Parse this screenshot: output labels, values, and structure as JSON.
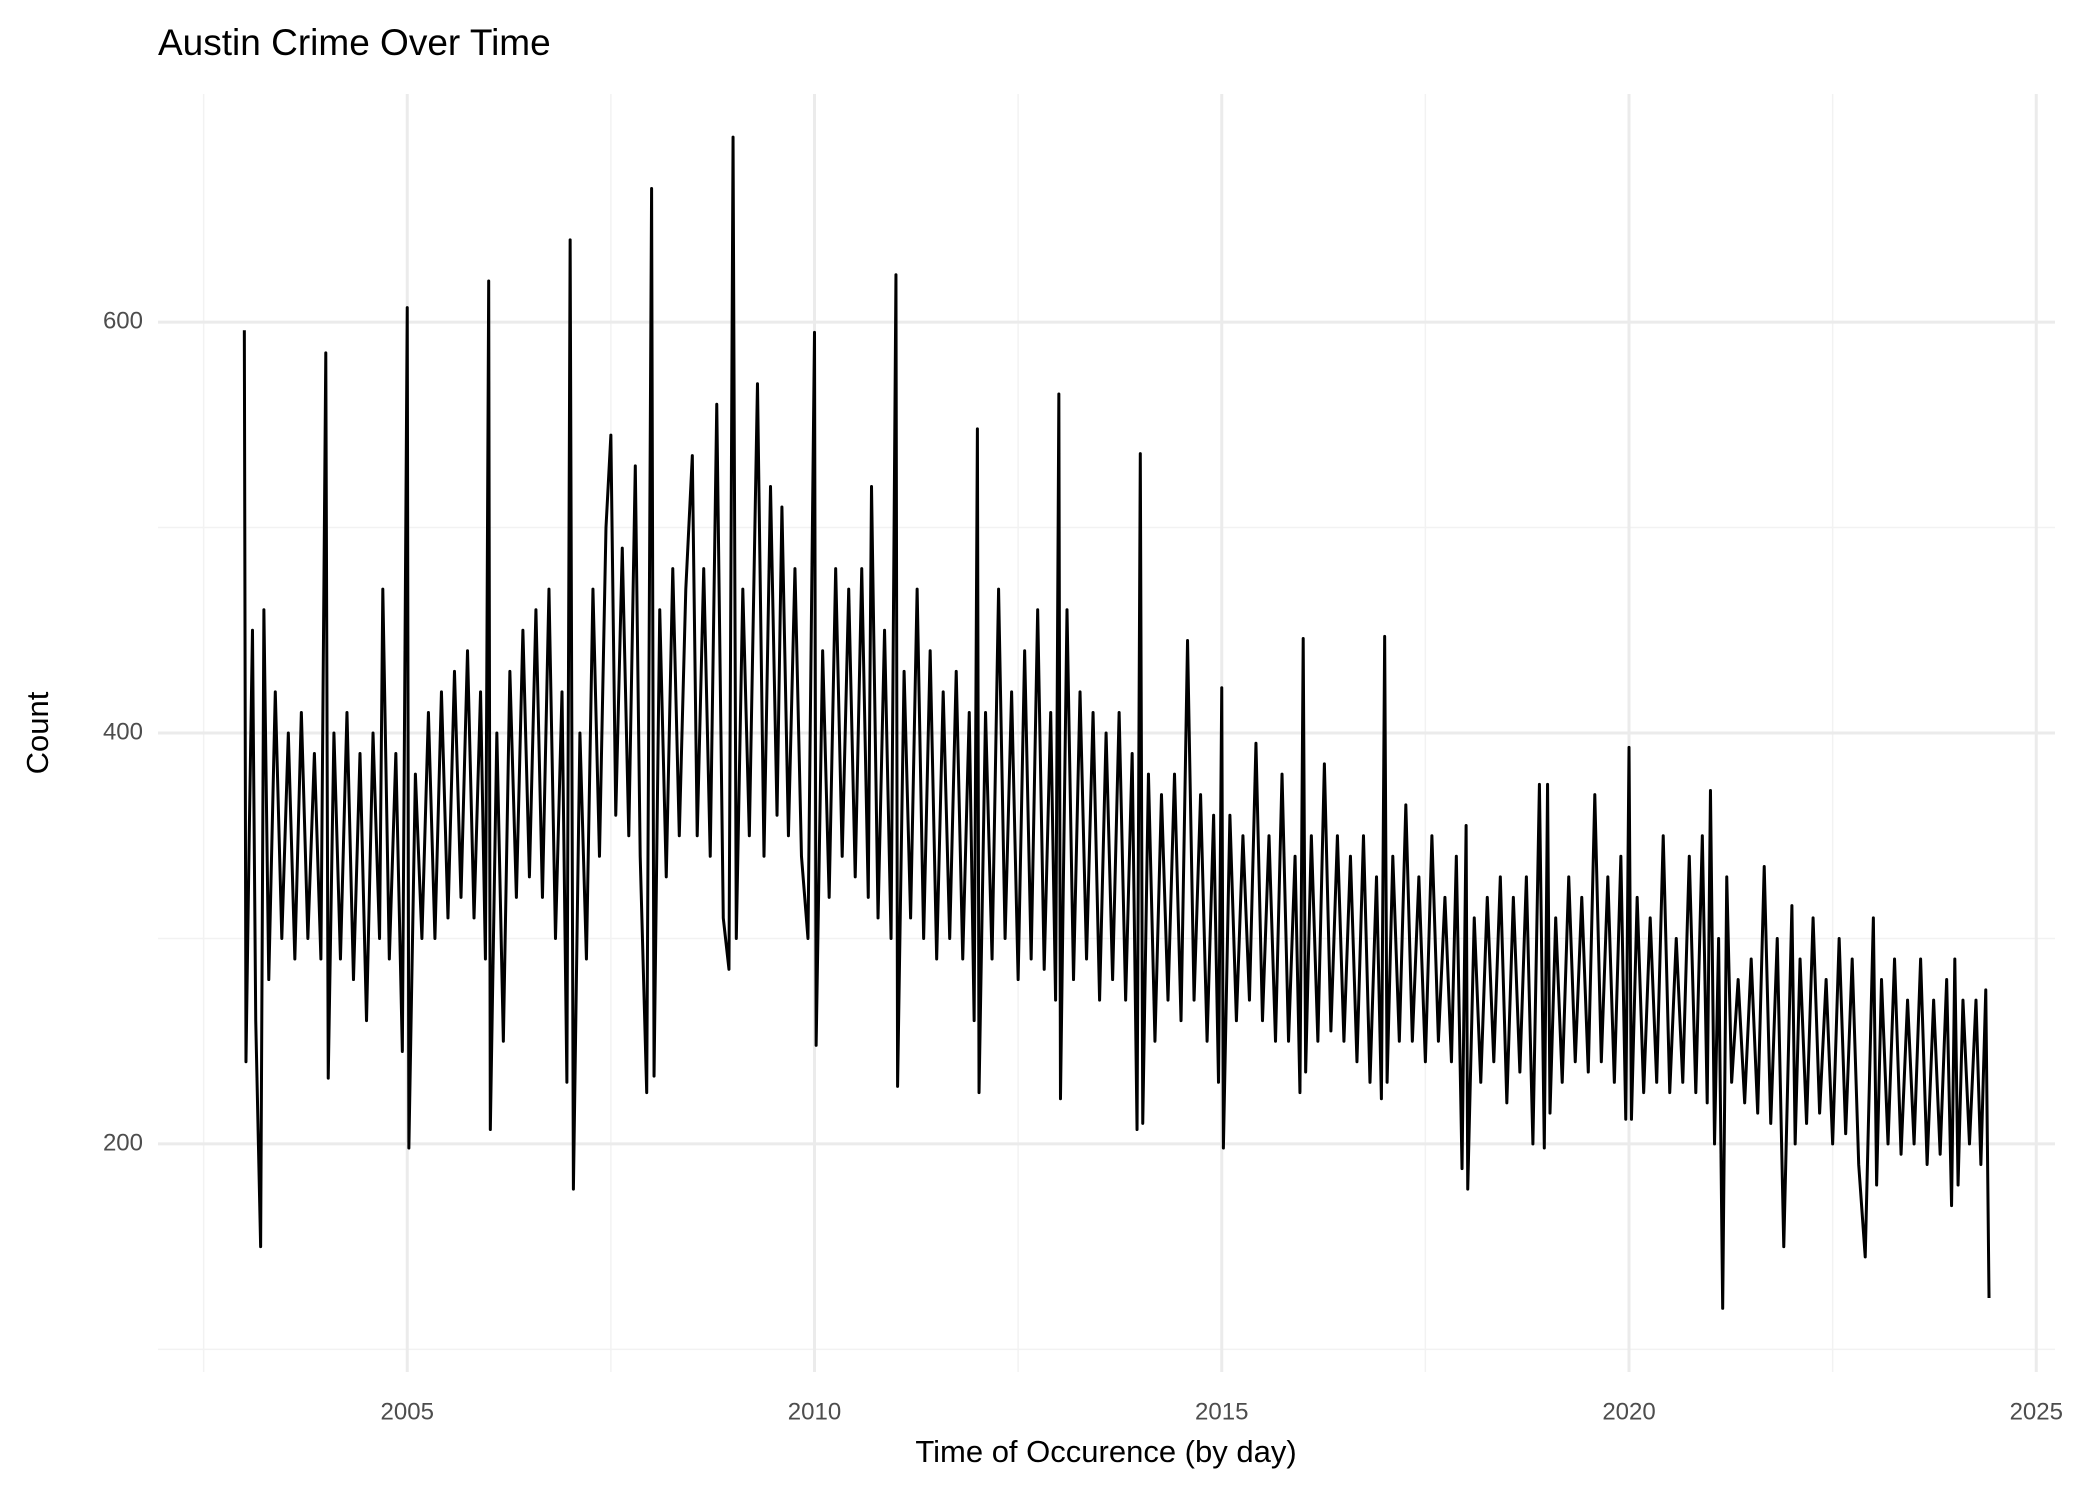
{
  "chart_data": {
    "type": "line",
    "title": "Austin Crime Over Time",
    "x_label": "Time of Occurence (by day)",
    "y_label": "Count",
    "color": "#000000",
    "grid": true,
    "xlim": [
      2001.94,
      2025.23
    ],
    "ylim": [
      89,
      711
    ],
    "xticks": [
      2005,
      2010,
      2015,
      2020,
      2025
    ],
    "yticks": [
      200,
      400,
      600
    ],
    "x_minor_grid": [
      2002.5,
      2007.5,
      2012.5,
      2017.5,
      2022.5
    ],
    "y_minor_grid": [
      100,
      300,
      500
    ],
    "x": [
      2003.0,
      2003.02,
      2003.06,
      2003.1,
      2003.14,
      2003.2,
      2003.24,
      2003.3,
      2003.38,
      2003.46,
      2003.54,
      2003.62,
      2003.7,
      2003.78,
      2003.86,
      2003.94,
      2004.0,
      2004.03,
      2004.1,
      2004.18,
      2004.26,
      2004.34,
      2004.42,
      2004.5,
      2004.58,
      2004.66,
      2004.7,
      2004.78,
      2004.86,
      2004.94,
      2005.0,
      2005.02,
      2005.1,
      2005.18,
      2005.26,
      2005.34,
      2005.42,
      2005.5,
      2005.58,
      2005.66,
      2005.74,
      2005.82,
      2005.9,
      2005.96,
      2006.0,
      2006.02,
      2006.1,
      2006.18,
      2006.26,
      2006.34,
      2006.42,
      2006.5,
      2006.58,
      2006.66,
      2006.74,
      2006.82,
      2006.9,
      2006.96,
      2007.0,
      2007.04,
      2007.12,
      2007.2,
      2007.28,
      2007.36,
      2007.44,
      2007.5,
      2007.56,
      2007.64,
      2007.72,
      2007.8,
      2007.86,
      2007.94,
      2008.0,
      2008.03,
      2008.1,
      2008.18,
      2008.26,
      2008.34,
      2008.42,
      2008.5,
      2008.56,
      2008.64,
      2008.72,
      2008.8,
      2008.88,
      2008.95,
      2009.0,
      2009.04,
      2009.12,
      2009.2,
      2009.3,
      2009.38,
      2009.46,
      2009.54,
      2009.6,
      2009.68,
      2009.76,
      2009.84,
      2009.92,
      2010.0,
      2010.02,
      2010.1,
      2010.18,
      2010.26,
      2010.34,
      2010.42,
      2010.5,
      2010.58,
      2010.66,
      2010.7,
      2010.78,
      2010.86,
      2010.94,
      2011.0,
      2011.02,
      2011.1,
      2011.18,
      2011.26,
      2011.34,
      2011.42,
      2011.5,
      2011.58,
      2011.66,
      2011.74,
      2011.82,
      2011.9,
      2011.96,
      2012.0,
      2012.02,
      2012.1,
      2012.18,
      2012.26,
      2012.34,
      2012.42,
      2012.5,
      2012.58,
      2012.66,
      2012.74,
      2012.82,
      2012.9,
      2012.96,
      2013.0,
      2013.02,
      2013.1,
      2013.18,
      2013.26,
      2013.34,
      2013.42,
      2013.5,
      2013.58,
      2013.66,
      2013.74,
      2013.82,
      2013.9,
      2013.96,
      2014.0,
      2014.03,
      2014.1,
      2014.18,
      2014.26,
      2014.34,
      2014.42,
      2014.5,
      2014.58,
      2014.66,
      2014.74,
      2014.82,
      2014.9,
      2014.96,
      2015.0,
      2015.02,
      2015.1,
      2015.18,
      2015.26,
      2015.34,
      2015.42,
      2015.5,
      2015.58,
      2015.66,
      2015.74,
      2015.82,
      2015.9,
      2015.96,
      2016.0,
      2016.03,
      2016.1,
      2016.18,
      2016.26,
      2016.34,
      2016.42,
      2016.5,
      2016.58,
      2016.66,
      2016.74,
      2016.82,
      2016.9,
      2016.96,
      2017.0,
      2017.03,
      2017.1,
      2017.18,
      2017.26,
      2017.34,
      2017.42,
      2017.5,
      2017.58,
      2017.66,
      2017.74,
      2017.82,
      2017.88,
      2017.95,
      2018.0,
      2018.02,
      2018.1,
      2018.18,
      2018.26,
      2018.34,
      2018.42,
      2018.5,
      2018.58,
      2018.66,
      2018.74,
      2018.82,
      2018.9,
      2018.96,
      2019.0,
      2019.03,
      2019.1,
      2019.18,
      2019.26,
      2019.34,
      2019.42,
      2019.5,
      2019.58,
      2019.66,
      2019.74,
      2019.82,
      2019.9,
      2019.96,
      2020.0,
      2020.03,
      2020.1,
      2020.18,
      2020.26,
      2020.34,
      2020.42,
      2020.5,
      2020.58,
      2020.66,
      2020.74,
      2020.82,
      2020.9,
      2020.96,
      2021.0,
      2021.05,
      2021.1,
      2021.15,
      2021.2,
      2021.26,
      2021.34,
      2021.42,
      2021.5,
      2021.58,
      2021.66,
      2021.74,
      2021.82,
      2021.9,
      2022.0,
      2022.04,
      2022.1,
      2022.18,
      2022.26,
      2022.34,
      2022.42,
      2022.5,
      2022.58,
      2022.66,
      2022.74,
      2022.82,
      2022.9,
      2023.0,
      2023.04,
      2023.1,
      2023.18,
      2023.26,
      2023.34,
      2023.42,
      2023.5,
      2023.58,
      2023.66,
      2023.74,
      2023.82,
      2023.9,
      2023.96,
      2024.0,
      2024.04,
      2024.1,
      2024.18,
      2024.26,
      2024.32,
      2024.38,
      2024.42
    ],
    "values": [
      596,
      240,
      350,
      450,
      260,
      150,
      460,
      280,
      420,
      300,
      400,
      290,
      410,
      300,
      390,
      290,
      585,
      232,
      400,
      290,
      410,
      280,
      390,
      260,
      400,
      300,
      470,
      290,
      390,
      245,
      607,
      198,
      380,
      300,
      410,
      300,
      420,
      310,
      430,
      320,
      440,
      310,
      420,
      290,
      620,
      207,
      400,
      250,
      430,
      320,
      450,
      330,
      460,
      320,
      470,
      300,
      420,
      230,
      640,
      178,
      400,
      290,
      470,
      340,
      500,
      545,
      360,
      490,
      350,
      530,
      340,
      225,
      665,
      233,
      460,
      330,
      480,
      350,
      470,
      535,
      350,
      480,
      340,
      560,
      310,
      285,
      690,
      300,
      470,
      350,
      570,
      340,
      520,
      360,
      510,
      350,
      480,
      340,
      300,
      595,
      248,
      440,
      320,
      480,
      340,
      470,
      330,
      480,
      320,
      520,
      310,
      450,
      300,
      623,
      228,
      430,
      310,
      470,
      300,
      440,
      290,
      420,
      300,
      430,
      290,
      410,
      260,
      548,
      225,
      410,
      290,
      470,
      300,
      420,
      280,
      440,
      290,
      460,
      285,
      410,
      270,
      565,
      222,
      460,
      280,
      420,
      290,
      410,
      270,
      400,
      280,
      410,
      270,
      390,
      207,
      536,
      210,
      380,
      250,
      370,
      270,
      380,
      260,
      445,
      270,
      370,
      250,
      360,
      230,
      422,
      198,
      360,
      260,
      350,
      270,
      395,
      260,
      350,
      250,
      380,
      250,
      340,
      225,
      446,
      235,
      350,
      250,
      385,
      255,
      350,
      250,
      340,
      240,
      350,
      230,
      330,
      222,
      447,
      230,
      340,
      250,
      365,
      250,
      330,
      240,
      350,
      250,
      320,
      240,
      340,
      188,
      355,
      178,
      310,
      230,
      320,
      240,
      330,
      220,
      320,
      235,
      330,
      200,
      375,
      198,
      375,
      215,
      310,
      230,
      330,
      240,
      320,
      235,
      370,
      240,
      330,
      230,
      340,
      212,
      393,
      212,
      320,
      225,
      310,
      230,
      350,
      225,
      300,
      230,
      340,
      225,
      350,
      220,
      372,
      200,
      300,
      120,
      330,
      230,
      280,
      220,
      290,
      215,
      335,
      210,
      300,
      150,
      316,
      200,
      290,
      210,
      310,
      215,
      280,
      200,
      300,
      205,
      290,
      190,
      145,
      310,
      180,
      280,
      200,
      290,
      195,
      270,
      200,
      290,
      190,
      270,
      195,
      280,
      170,
      290,
      180,
      270,
      200,
      270,
      190,
      275,
      125
    ]
  }
}
